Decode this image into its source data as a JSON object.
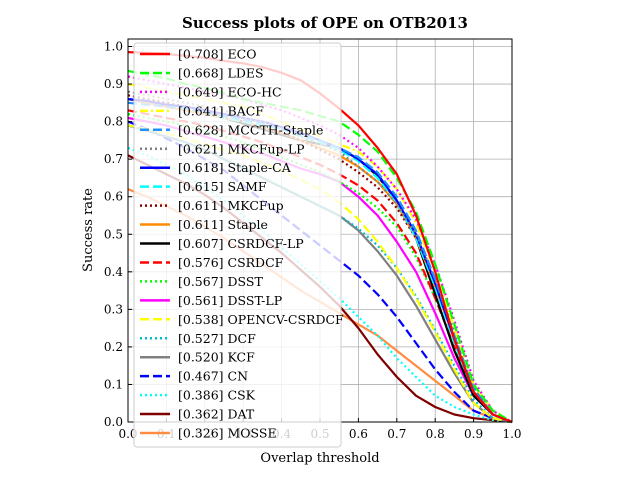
{
  "chart_data": {
    "type": "line",
    "title": "Success plots of OPE on OTB2013",
    "xlabel": "Overlap threshold",
    "ylabel": "Success rate",
    "xlim": [
      0,
      1
    ],
    "ylim": [
      0,
      1.02
    ],
    "grid": true,
    "legend_position": "left-inside",
    "x": [
      0,
      0.05,
      0.1,
      0.15,
      0.2,
      0.25,
      0.3,
      0.35,
      0.4,
      0.45,
      0.5,
      0.55,
      0.6,
      0.65,
      0.7,
      0.75,
      0.8,
      0.85,
      0.9,
      0.95,
      1.0
    ],
    "x_ticks": [
      "0.0",
      "0.1",
      "0.2",
      "0.3",
      "0.4",
      "0.5",
      "0.6",
      "0.7",
      "0.8",
      "0.9",
      "1.0"
    ],
    "y_ticks": [
      "0.0",
      "0.1",
      "0.2",
      "0.3",
      "0.4",
      "0.5",
      "0.6",
      "0.7",
      "0.8",
      "0.9",
      "1.0"
    ],
    "series": [
      {
        "name": "[0.708] ECO",
        "color": "#ff0000",
        "dash": "solid",
        "values": [
          0.985,
          0.983,
          0.98,
          0.975,
          0.97,
          0.962,
          0.955,
          0.945,
          0.93,
          0.91,
          0.875,
          0.835,
          0.79,
          0.73,
          0.66,
          0.55,
          0.4,
          0.22,
          0.08,
          0.02,
          0.0
        ]
      },
      {
        "name": "[0.668] LDES",
        "color": "#00ff00",
        "dash": "dash",
        "values": [
          0.935,
          0.925,
          0.915,
          0.9,
          0.89,
          0.875,
          0.86,
          0.85,
          0.84,
          0.83,
          0.815,
          0.8,
          0.765,
          0.72,
          0.65,
          0.56,
          0.42,
          0.26,
          0.1,
          0.03,
          0.0
        ]
      },
      {
        "name": "[0.649] ECO-HC",
        "color": "#ff00ff",
        "dash": "dot",
        "values": [
          0.92,
          0.91,
          0.9,
          0.89,
          0.88,
          0.87,
          0.86,
          0.845,
          0.83,
          0.81,
          0.79,
          0.765,
          0.73,
          0.68,
          0.62,
          0.54,
          0.42,
          0.27,
          0.11,
          0.03,
          0.0
        ]
      },
      {
        "name": "[0.641] BACF",
        "color": "#ffff00",
        "dash": "dashdot",
        "values": [
          0.9,
          0.89,
          0.88,
          0.87,
          0.86,
          0.85,
          0.84,
          0.82,
          0.8,
          0.78,
          0.76,
          0.74,
          0.72,
          0.68,
          0.62,
          0.53,
          0.4,
          0.25,
          0.1,
          0.03,
          0.0
        ]
      },
      {
        "name": "[0.628] MCCTH-Staple",
        "color": "#1e90ff",
        "dash": "dash",
        "values": [
          0.85,
          0.845,
          0.84,
          0.835,
          0.825,
          0.815,
          0.805,
          0.795,
          0.78,
          0.765,
          0.75,
          0.73,
          0.705,
          0.665,
          0.6,
          0.51,
          0.38,
          0.23,
          0.09,
          0.02,
          0.0
        ]
      },
      {
        "name": "[0.621] MKCFup-LP",
        "color": "#808080",
        "dash": "dot",
        "values": [
          0.88,
          0.87,
          0.86,
          0.85,
          0.84,
          0.83,
          0.81,
          0.8,
          0.78,
          0.76,
          0.74,
          0.72,
          0.68,
          0.64,
          0.58,
          0.5,
          0.38,
          0.24,
          0.09,
          0.02,
          0.0
        ]
      },
      {
        "name": "[0.618] Staple-CA",
        "color": "#0000ff",
        "dash": "solid",
        "values": [
          0.86,
          0.855,
          0.845,
          0.84,
          0.83,
          0.82,
          0.81,
          0.8,
          0.785,
          0.77,
          0.75,
          0.73,
          0.7,
          0.66,
          0.59,
          0.5,
          0.37,
          0.22,
          0.08,
          0.02,
          0.0
        ]
      },
      {
        "name": "[0.615] SAMF",
        "color": "#00ffff",
        "dash": "dash",
        "values": [
          0.86,
          0.855,
          0.845,
          0.835,
          0.825,
          0.81,
          0.8,
          0.79,
          0.78,
          0.76,
          0.745,
          0.725,
          0.695,
          0.65,
          0.585,
          0.49,
          0.36,
          0.21,
          0.08,
          0.02,
          0.0
        ]
      },
      {
        "name": "[0.611] MKCFup",
        "color": "#8b0000",
        "dash": "dot",
        "values": [
          0.87,
          0.86,
          0.85,
          0.84,
          0.83,
          0.815,
          0.8,
          0.785,
          0.77,
          0.75,
          0.725,
          0.7,
          0.665,
          0.625,
          0.57,
          0.49,
          0.37,
          0.23,
          0.09,
          0.02,
          0.0
        ]
      },
      {
        "name": "[0.611] Staple",
        "color": "#ff8c00",
        "dash": "solid",
        "values": [
          0.86,
          0.85,
          0.84,
          0.83,
          0.82,
          0.81,
          0.8,
          0.785,
          0.77,
          0.75,
          0.73,
          0.71,
          0.68,
          0.64,
          0.58,
          0.49,
          0.36,
          0.22,
          0.08,
          0.02,
          0.0
        ]
      },
      {
        "name": "[0.607] CSRDCF-LP",
        "color": "#000000",
        "dash": "solid",
        "values": [
          0.86,
          0.85,
          0.84,
          0.83,
          0.82,
          0.81,
          0.795,
          0.78,
          0.765,
          0.75,
          0.74,
          0.73,
          0.7,
          0.655,
          0.59,
          0.49,
          0.34,
          0.19,
          0.07,
          0.02,
          0.0
        ]
      },
      {
        "name": "[0.576] CSRDCF",
        "color": "#ff0000",
        "dash": "dash",
        "values": [
          0.83,
          0.82,
          0.81,
          0.8,
          0.79,
          0.775,
          0.76,
          0.745,
          0.725,
          0.705,
          0.685,
          0.66,
          0.63,
          0.59,
          0.53,
          0.45,
          0.33,
          0.2,
          0.08,
          0.02,
          0.0
        ]
      },
      {
        "name": "[0.567] DSST",
        "color": "#00ff00",
        "dash": "dot",
        "values": [
          0.82,
          0.81,
          0.8,
          0.79,
          0.775,
          0.76,
          0.745,
          0.725,
          0.705,
          0.685,
          0.665,
          0.64,
          0.61,
          0.57,
          0.52,
          0.44,
          0.33,
          0.2,
          0.08,
          0.02,
          0.0
        ]
      },
      {
        "name": "[0.561] DSST-LP",
        "color": "#ff00ff",
        "dash": "solid",
        "values": [
          0.81,
          0.8,
          0.79,
          0.775,
          0.76,
          0.745,
          0.73,
          0.715,
          0.695,
          0.675,
          0.66,
          0.64,
          0.6,
          0.55,
          0.48,
          0.4,
          0.29,
          0.17,
          0.07,
          0.02,
          0.0
        ]
      },
      {
        "name": "[0.538] OPENCV-CSRDCF",
        "color": "#ffff00",
        "dash": "dash",
        "values": [
          0.79,
          0.78,
          0.77,
          0.755,
          0.74,
          0.725,
          0.71,
          0.69,
          0.67,
          0.645,
          0.62,
          0.585,
          0.54,
          0.48,
          0.41,
          0.33,
          0.24,
          0.14,
          0.05,
          0.01,
          0.0
        ]
      },
      {
        "name": "[0.527] DCF",
        "color": "#00bcd4",
        "dash": "dot",
        "values": [
          0.79,
          0.775,
          0.76,
          0.745,
          0.725,
          0.7,
          0.675,
          0.65,
          0.625,
          0.6,
          0.575,
          0.55,
          0.515,
          0.47,
          0.41,
          0.335,
          0.245,
          0.15,
          0.06,
          0.01,
          0.0
        ]
      },
      {
        "name": "[0.520] KCF",
        "color": "#808080",
        "dash": "solid",
        "values": [
          0.79,
          0.775,
          0.76,
          0.745,
          0.725,
          0.7,
          0.675,
          0.65,
          0.625,
          0.6,
          0.575,
          0.55,
          0.51,
          0.455,
          0.39,
          0.31,
          0.22,
          0.13,
          0.05,
          0.01,
          0.0
        ]
      },
      {
        "name": "[0.467] CN",
        "color": "#0000ff",
        "dash": "dash",
        "values": [
          0.8,
          0.78,
          0.755,
          0.73,
          0.7,
          0.67,
          0.63,
          0.59,
          0.55,
          0.51,
          0.47,
          0.43,
          0.39,
          0.34,
          0.28,
          0.21,
          0.14,
          0.08,
          0.03,
          0.01,
          0.0
        ]
      },
      {
        "name": "[0.386] CSK",
        "color": "#00ffff",
        "dash": "dot",
        "values": [
          0.73,
          0.71,
          0.685,
          0.66,
          0.625,
          0.59,
          0.55,
          0.51,
          0.465,
          0.42,
          0.375,
          0.33,
          0.28,
          0.23,
          0.17,
          0.12,
          0.07,
          0.04,
          0.02,
          0.005,
          0.0
        ]
      },
      {
        "name": "[0.362] DAT",
        "color": "#800000",
        "dash": "solid",
        "values": [
          0.71,
          0.685,
          0.66,
          0.635,
          0.605,
          0.57,
          0.53,
          0.49,
          0.45,
          0.405,
          0.36,
          0.31,
          0.25,
          0.18,
          0.12,
          0.07,
          0.04,
          0.02,
          0.01,
          0.005,
          0.0
        ]
      },
      {
        "name": "[0.326] MOSSE",
        "color": "#ff8c40",
        "dash": "solid",
        "values": [
          0.62,
          0.6,
          0.575,
          0.55,
          0.52,
          0.49,
          0.455,
          0.42,
          0.385,
          0.35,
          0.32,
          0.29,
          0.26,
          0.23,
          0.19,
          0.15,
          0.11,
          0.07,
          0.03,
          0.01,
          0.0
        ]
      }
    ]
  }
}
